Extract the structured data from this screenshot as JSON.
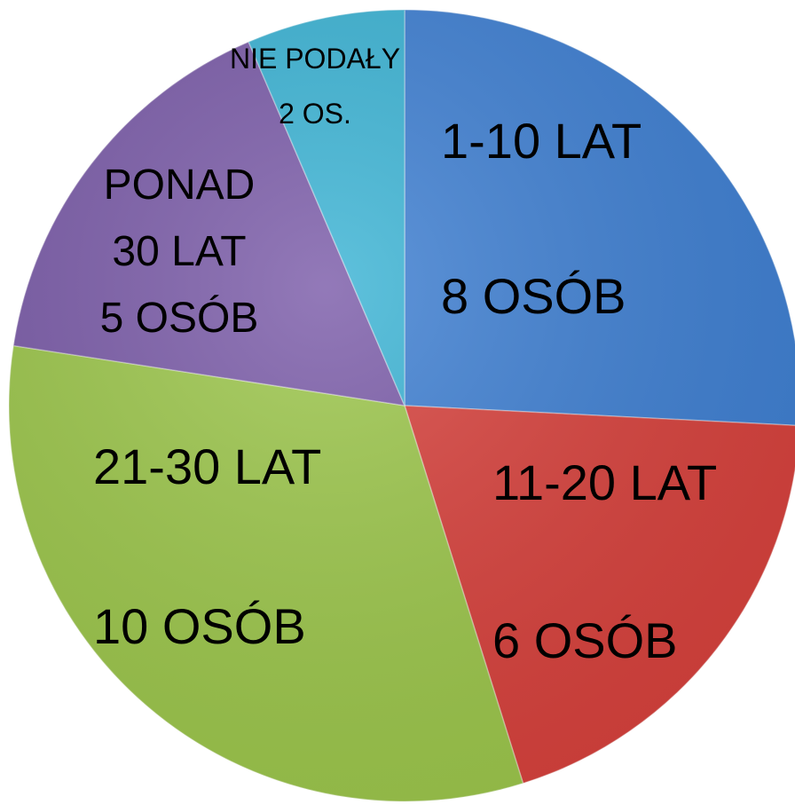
{
  "chart_data": {
    "type": "pie",
    "categories": [
      "1-10 LAT",
      "11-20 LAT",
      "21-30 LAT",
      "PONAD 30 LAT",
      "NIE PODAŁY"
    ],
    "values": [
      8,
      6,
      10,
      5,
      2
    ],
    "value_labels": [
      "8 OSÓB",
      "6 OSÓB",
      "10 OSÓB",
      "5 OSÓB",
      "2 OS."
    ],
    "colors": [
      "#3f80d3",
      "#d8423d",
      "#9dc74c",
      "#7b5ca9",
      "#3cb4d5"
    ]
  }
}
